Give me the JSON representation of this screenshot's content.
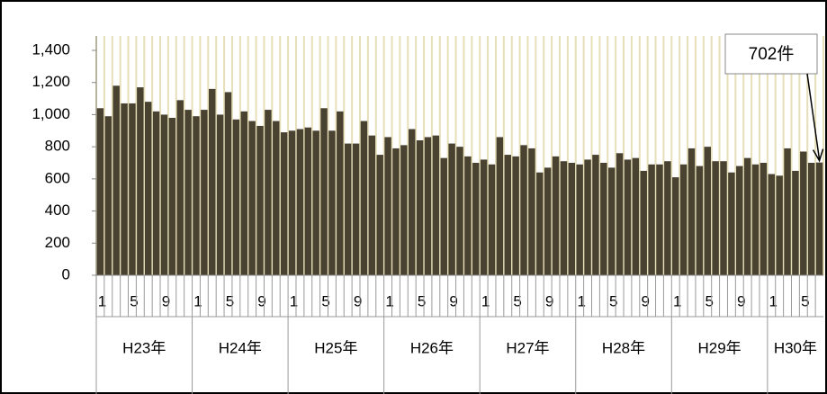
{
  "chart_data": {
    "type": "bar",
    "categories": [
      "1",
      null,
      null,
      null,
      "5",
      null,
      null,
      null,
      "9",
      null,
      null,
      null,
      "1",
      null,
      null,
      null,
      "5",
      null,
      null,
      null,
      "9",
      null,
      null,
      null,
      "1",
      null,
      null,
      null,
      "5",
      null,
      null,
      null,
      "9",
      null,
      null,
      null,
      "1",
      null,
      null,
      null,
      "5",
      null,
      null,
      null,
      "9",
      null,
      null,
      null,
      "1",
      null,
      null,
      null,
      "5",
      null,
      null,
      null,
      "9",
      null,
      null,
      null,
      "1",
      null,
      null,
      null,
      "5",
      null,
      null,
      null,
      "9",
      null,
      null,
      null,
      "1",
      null,
      null,
      null,
      "5",
      null,
      null,
      null,
      "9",
      null,
      null,
      null,
      "1",
      null,
      null,
      null,
      "5",
      null,
      null
    ],
    "year_labels": [
      "H23年",
      "H24年",
      "H25年",
      "H26年",
      "H27年",
      "H28年",
      "H29年",
      "H30年"
    ],
    "values": [
      1040,
      990,
      1180,
      1070,
      1070,
      1170,
      1080,
      1020,
      1000,
      980,
      1090,
      1030,
      990,
      1030,
      1160,
      1000,
      1140,
      970,
      1020,
      960,
      930,
      1030,
      960,
      890,
      900,
      910,
      920,
      900,
      1040,
      900,
      1020,
      820,
      820,
      960,
      870,
      750,
      860,
      790,
      810,
      910,
      840,
      860,
      870,
      730,
      820,
      800,
      740,
      700,
      720,
      690,
      860,
      750,
      740,
      810,
      790,
      640,
      670,
      740,
      710,
      700,
      690,
      720,
      750,
      700,
      670,
      760,
      720,
      730,
      650,
      690,
      690,
      710,
      610,
      690,
      790,
      680,
      800,
      710,
      710,
      640,
      680,
      730,
      690,
      700,
      630,
      620,
      790,
      650,
      770,
      700,
      702
    ],
    "color": "#4a4230",
    "ylim": [
      0,
      1400
    ],
    "yticks": [
      0,
      200,
      400,
      600,
      800,
      {
        "value": 1000,
        "label": "1,000"
      },
      {
        "value": 1200,
        "label": "1,200"
      },
      {
        "value": 1400,
        "label": "1,400"
      }
    ],
    "annotation": "702件",
    "grid": true
  }
}
